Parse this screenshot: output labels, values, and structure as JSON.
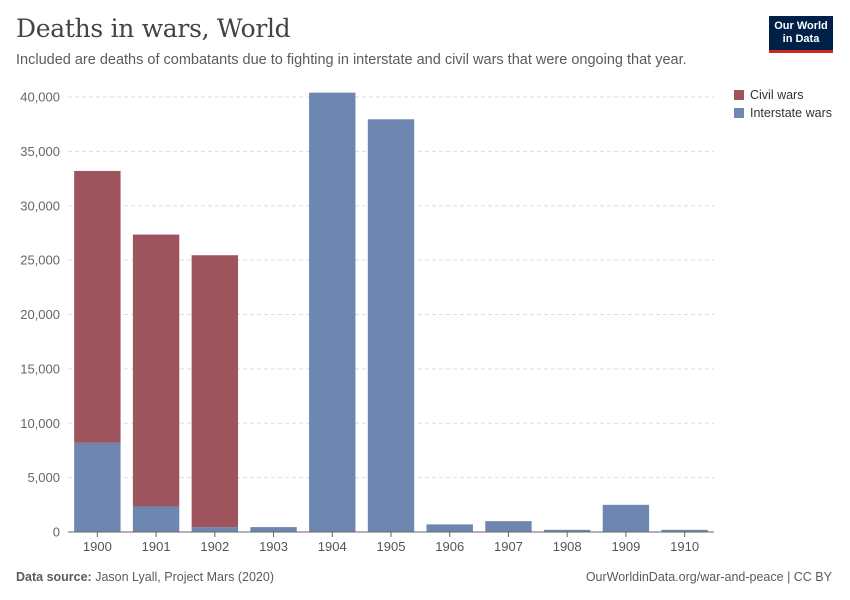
{
  "header": {
    "title": "Deaths in wars, World",
    "subtitle": "Included are deaths of combatants due to fighting in interstate and civil wars that were ongoing that year."
  },
  "logo": {
    "line1": "Our World",
    "line2": "in Data"
  },
  "footer": {
    "source_label": "Data source:",
    "source_text": "Jason Lyall, Project Mars (2020)",
    "credit": "OurWorldinData.org/war-and-peace | CC BY"
  },
  "colors": {
    "civil": "#9e545c",
    "interstate": "#6d87b0",
    "grid": "#dddddd",
    "axis": "#666666"
  },
  "chart_data": {
    "type": "bar",
    "stacked": true,
    "categories": [
      "1900",
      "1901",
      "1902",
      "1903",
      "1904",
      "1905",
      "1906",
      "1907",
      "1908",
      "1909",
      "1910"
    ],
    "series": [
      {
        "name": "Interstate wars",
        "values": [
          8200,
          2350,
          450,
          450,
          40400,
          37950,
          700,
          1000,
          200,
          2500,
          200
        ]
      },
      {
        "name": "Civil wars",
        "values": [
          25000,
          25000,
          25000,
          0,
          0,
          0,
          0,
          0,
          0,
          0,
          0
        ]
      }
    ],
    "legend": [
      "Civil wars",
      "Interstate wars"
    ],
    "legend_position": "top-right",
    "ylim": [
      0,
      40000
    ],
    "yticks": [
      0,
      5000,
      10000,
      15000,
      20000,
      25000,
      30000,
      35000,
      40000
    ],
    "ytick_labels": [
      "0",
      "5,000",
      "10,000",
      "15,000",
      "20,000",
      "25,000",
      "30,000",
      "35,000",
      "40,000"
    ],
    "grid": true
  }
}
